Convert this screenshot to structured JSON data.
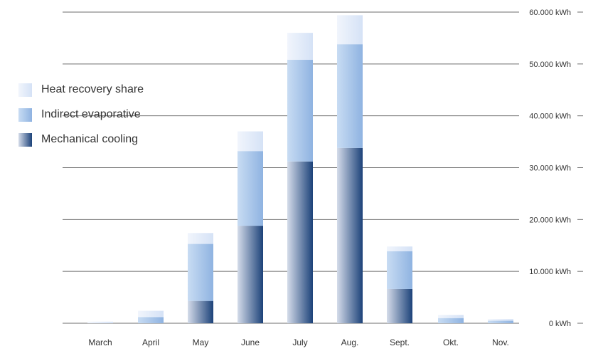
{
  "chart_data": {
    "type": "bar",
    "stacked": true,
    "categories": [
      "March",
      "April",
      "May",
      "June",
      "July",
      "Aug.",
      "Sept.",
      "Okt.",
      "Nov."
    ],
    "series": [
      {
        "name": "Mechanical cooling",
        "values": [
          0,
          0,
          4300,
          18800,
          31200,
          33800,
          6600,
          0,
          0
        ]
      },
      {
        "name": "Indirect evaporative",
        "values": [
          0,
          1200,
          11000,
          14400,
          19600,
          20000,
          7300,
          1000,
          500
        ]
      },
      {
        "name": "Heat recovery share",
        "values": [
          300,
          1200,
          2100,
          3800,
          5200,
          5600,
          900,
          600,
          300
        ]
      }
    ],
    "ylim": [
      0,
      60000
    ],
    "ytick_values": [
      0,
      10000,
      20000,
      30000,
      40000,
      50000,
      60000
    ],
    "ytick_labels": [
      "0 kWh",
      "10.000 kWh",
      "20.000 kWh",
      "30.000 kWh",
      "40.000 kWh",
      "50.000 kWh",
      "60.000 kWh"
    ],
    "grid": true,
    "y_axis_side": "right",
    "legend_position": "left",
    "colors": {
      "Mechanical cooling": {
        "light": "#d5dcea",
        "dark": "#1c4279"
      },
      "Indirect evaporative": {
        "light": "#c8dcf3",
        "dark": "#8fb3e1"
      },
      "Heat recovery share": {
        "light": "#f1f5fc",
        "dark": "#d5e2f6"
      }
    },
    "gridline_color": "#6e6e6e"
  },
  "legend": {
    "items": [
      {
        "label": "Heat recovery share"
      },
      {
        "label": "Indirect evaporative"
      },
      {
        "label": "Mechanical cooling"
      }
    ]
  }
}
